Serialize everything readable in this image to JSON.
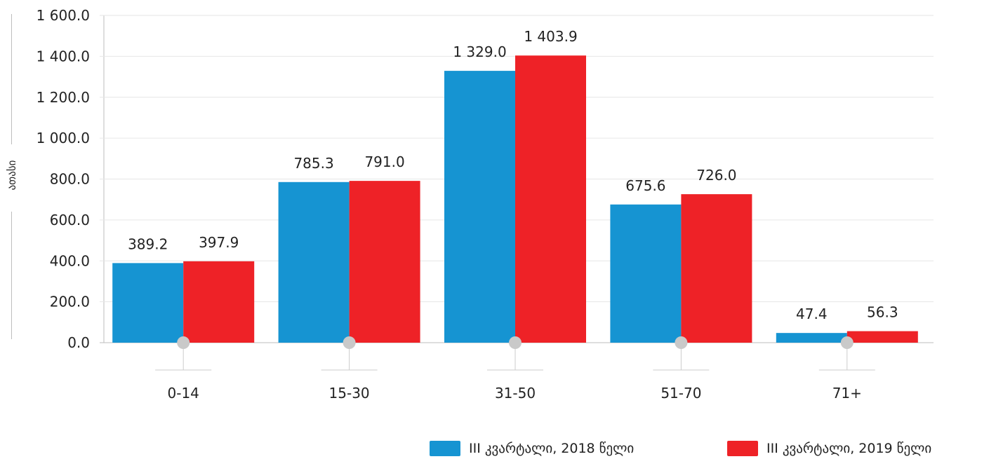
{
  "chart_data": {
    "type": "bar",
    "categories": [
      "0-14",
      "15-30",
      "31-50",
      "51-70",
      "71+"
    ],
    "series": [
      {
        "name": "III კვარტალი, 2018 წელი",
        "values": [
          389.2,
          785.3,
          1329.0,
          675.6,
          47.4
        ],
        "labels": [
          "389.2",
          "785.3",
          "1 329.0",
          "675.6",
          "47.4"
        ],
        "color": "#1694d2"
      },
      {
        "name": "III კვარტალი, 2019 წელი",
        "values": [
          397.9,
          791.0,
          1403.9,
          726.0,
          56.3
        ],
        "labels": [
          "397.9",
          "791.0",
          "1 403.9",
          "726.0",
          "56.3"
        ],
        "color": "#ee2227"
      }
    ],
    "ylabel": "ათასი",
    "ylim": [
      0,
      1600
    ],
    "yticks": [
      0,
      200,
      400,
      600,
      800,
      1000,
      1200,
      1400,
      1600
    ],
    "ytick_labels": [
      "0.0",
      "200.0",
      "400.0",
      "600.0",
      "800.0",
      "1 000.0",
      "1 200.0",
      "1 400.0",
      "1 600.0"
    ],
    "grid": true,
    "legend_position": "bottom-right"
  }
}
